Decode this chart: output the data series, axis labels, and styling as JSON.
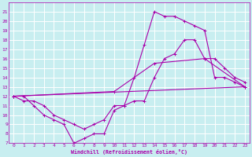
{
  "xlabel": "Windchill (Refroidissement éolien,°C)",
  "background_color": "#c8eef0",
  "grid_color": "#ffffff",
  "line_color": "#aa00aa",
  "xlim": [
    -0.5,
    23.5
  ],
  "ylim": [
    7,
    22
  ],
  "xticks": [
    0,
    1,
    2,
    3,
    4,
    5,
    6,
    7,
    8,
    9,
    10,
    11,
    12,
    13,
    14,
    15,
    16,
    17,
    18,
    19,
    20,
    21,
    22,
    23
  ],
  "yticks": [
    7,
    8,
    9,
    10,
    11,
    12,
    13,
    14,
    15,
    16,
    17,
    18,
    19,
    20,
    21
  ],
  "line1_x": [
    0,
    1,
    2,
    3,
    4,
    5,
    6,
    7,
    8,
    9,
    10,
    11,
    12,
    13,
    14,
    15,
    16,
    17,
    18,
    19,
    20,
    21,
    22,
    23
  ],
  "line1_y": [
    12,
    12,
    11,
    10,
    9.5,
    9,
    7,
    7.5,
    8,
    8,
    10.5,
    11,
    14,
    17.5,
    21,
    20.5,
    20.5,
    20,
    19.5,
    19,
    14,
    14,
    13.5,
    13
  ],
  "line2_x": [
    0,
    1,
    2,
    3,
    4,
    5,
    6,
    7,
    8,
    9,
    10,
    11,
    12,
    13,
    14,
    15,
    16,
    17,
    18,
    19,
    20,
    21,
    22,
    23
  ],
  "line2_y": [
    12,
    11.5,
    11.5,
    11,
    10,
    9.5,
    9,
    8.5,
    9,
    9.5,
    11,
    11,
    11.5,
    11.5,
    14,
    16,
    16.5,
    18,
    18,
    16,
    16,
    15,
    14,
    13.5
  ],
  "line3_x": [
    0,
    23
  ],
  "line3_y": [
    12,
    13
  ],
  "line4_x": [
    0,
    10,
    14,
    19,
    23
  ],
  "line4_y": [
    12,
    12.5,
    15.5,
    16,
    13
  ]
}
